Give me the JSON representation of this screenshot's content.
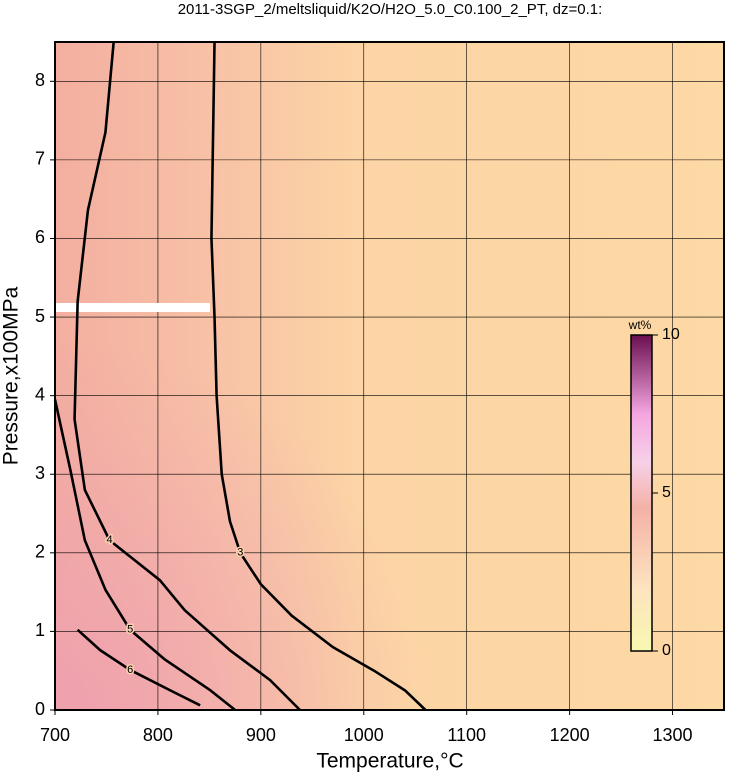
{
  "chart_data": {
    "type": "contour",
    "title": "2011-3SGP_2/meltsliquid/K2O/H2O_5.0_C0.100_2_PT, dz=0.1:",
    "xlabel": "Temperature,°C",
    "ylabel": "Pressure,x100MPa",
    "xlim": [
      700,
      1350
    ],
    "ylim": [
      0,
      8.5
    ],
    "xticks": [
      700,
      800,
      900,
      1000,
      1100,
      1200,
      1300
    ],
    "yticks": [
      0,
      1,
      2,
      3,
      4,
      5,
      6,
      7,
      8
    ],
    "grid": true,
    "contours": [
      {
        "level": 3,
        "x": [
          855,
          852,
          855,
          857,
          862,
          870,
          880,
          900,
          930,
          970,
          1010,
          1040,
          1060
        ],
        "y": [
          8.5,
          6,
          5,
          4,
          3,
          2.4,
          2,
          1.6,
          1.2,
          0.8,
          0.5,
          0.25,
          0
        ]
      },
      {
        "level": 4,
        "x": [
          757,
          749,
          732,
          722,
          719,
          729,
          753,
          802,
          826,
          870,
          909,
          938
        ],
        "y": [
          8.5,
          7.35,
          6.36,
          5.2,
          3.7,
          2.8,
          2.16,
          1.65,
          1.27,
          0.76,
          0.38,
          0
        ]
      },
      {
        "level": 5,
        "x": [
          700,
          715,
          729,
          749,
          773,
          807,
          851,
          875
        ],
        "y": [
          3.95,
          3.05,
          2.16,
          1.53,
          1.02,
          0.64,
          0.25,
          0
        ]
      },
      {
        "level": 6,
        "x": [
          722,
          744,
          773,
          812,
          841
        ],
        "y": [
          1.02,
          0.76,
          0.51,
          0.25,
          0.06
        ]
      }
    ],
    "colorbar": {
      "label": "wt%",
      "lim": [
        0,
        10
      ],
      "ticks": [
        0,
        5,
        10
      ]
    }
  }
}
